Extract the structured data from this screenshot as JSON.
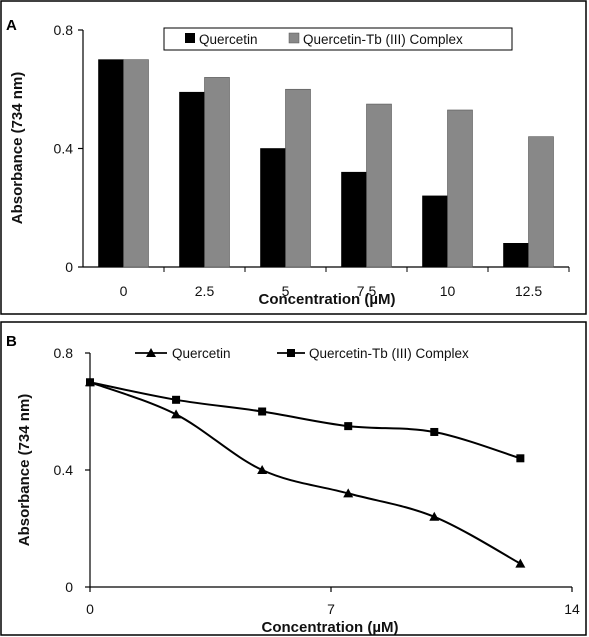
{
  "chart_data": [
    {
      "panel_label": "A",
      "type": "bar",
      "categories": [
        "0",
        "2.5",
        "5",
        "7.5",
        "10",
        "12.5"
      ],
      "series": [
        {
          "name": "Quercetin",
          "values": [
            0.7,
            0.59,
            0.4,
            0.32,
            0.24,
            0.08
          ],
          "color": "#000000"
        },
        {
          "name": "Quercetin-Tb (III) Complex",
          "values": [
            0.7,
            0.64,
            0.6,
            0.55,
            0.53,
            0.44
          ],
          "color": "#888888"
        }
      ],
      "xlabel": "Concentration (µM)",
      "ylabel": "Absorbance (734 nm)",
      "ylim": [
        0,
        0.8
      ],
      "yticks": [
        "0",
        "0.4",
        "0.8"
      ],
      "legend": "top-right",
      "grid": false
    },
    {
      "panel_label": "B",
      "type": "line",
      "series": [
        {
          "name": "Quercetin",
          "marker": "triangle",
          "x": [
            0,
            2.5,
            5,
            7.5,
            10,
            12.5
          ],
          "values": [
            0.7,
            0.59,
            0.4,
            0.32,
            0.24,
            0.08
          ]
        },
        {
          "name": "Quercetin-Tb (III) Complex",
          "marker": "square",
          "x": [
            0,
            2.5,
            5,
            7.5,
            10,
            12.5
          ],
          "values": [
            0.7,
            0.64,
            0.6,
            0.55,
            0.53,
            0.44
          ]
        }
      ],
      "xlabel": "Concentration (µM)",
      "ylabel": "Absorbance (734 nm)",
      "xlim": [
        0,
        14
      ],
      "ylim": [
        0,
        0.8
      ],
      "xticks": [
        "0",
        "7",
        "14"
      ],
      "yticks": [
        "0",
        "0.4",
        "0.8"
      ],
      "legend": "top",
      "grid": false
    }
  ]
}
